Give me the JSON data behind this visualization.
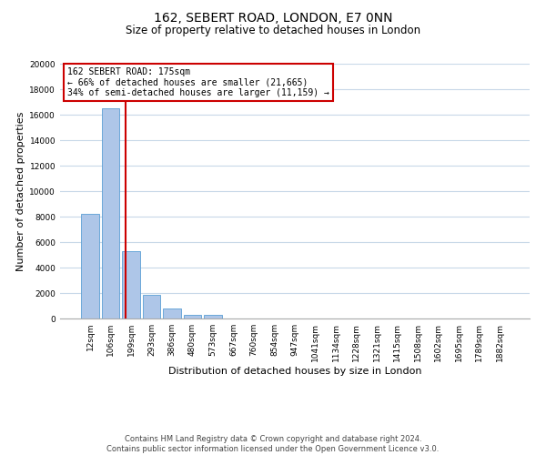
{
  "title": "162, SEBERT ROAD, LONDON, E7 0NN",
  "subtitle": "Size of property relative to detached houses in London",
  "xlabel": "Distribution of detached houses by size in London",
  "ylabel": "Number of detached properties",
  "bar_labels": [
    "12sqm",
    "106sqm",
    "199sqm",
    "293sqm",
    "386sqm",
    "480sqm",
    "573sqm",
    "667sqm",
    "760sqm",
    "854sqm",
    "947sqm",
    "1041sqm",
    "1134sqm",
    "1228sqm",
    "1321sqm",
    "1415sqm",
    "1508sqm",
    "1602sqm",
    "1695sqm",
    "1789sqm",
    "1882sqm"
  ],
  "bar_values": [
    8200,
    16500,
    5300,
    1850,
    800,
    300,
    280,
    0,
    0,
    0,
    0,
    0,
    0,
    0,
    0,
    0,
    0,
    0,
    0,
    0,
    0
  ],
  "bar_color": "#aec6e8",
  "bar_edge_color": "#5a9fd4",
  "vline_x": 1.75,
  "vline_color": "#cc0000",
  "ylim": [
    0,
    20000
  ],
  "yticks": [
    0,
    2000,
    4000,
    6000,
    8000,
    10000,
    12000,
    14000,
    16000,
    18000,
    20000
  ],
  "annotation_title": "162 SEBERT ROAD: 175sqm",
  "annotation_line1": "← 66% of detached houses are smaller (21,665)",
  "annotation_line2": "34% of semi-detached houses are larger (11,159) →",
  "annotation_box_color": "#ffffff",
  "annotation_box_edge": "#cc0000",
  "footer_line1": "Contains HM Land Registry data © Crown copyright and database right 2024.",
  "footer_line2": "Contains public sector information licensed under the Open Government Licence v3.0.",
  "bg_color": "#ffffff",
  "grid_color": "#c8d8e8",
  "title_fontsize": 10,
  "subtitle_fontsize": 8.5,
  "axis_label_fontsize": 8,
  "tick_fontsize": 6.5,
  "footer_fontsize": 6,
  "annotation_fontsize": 7
}
